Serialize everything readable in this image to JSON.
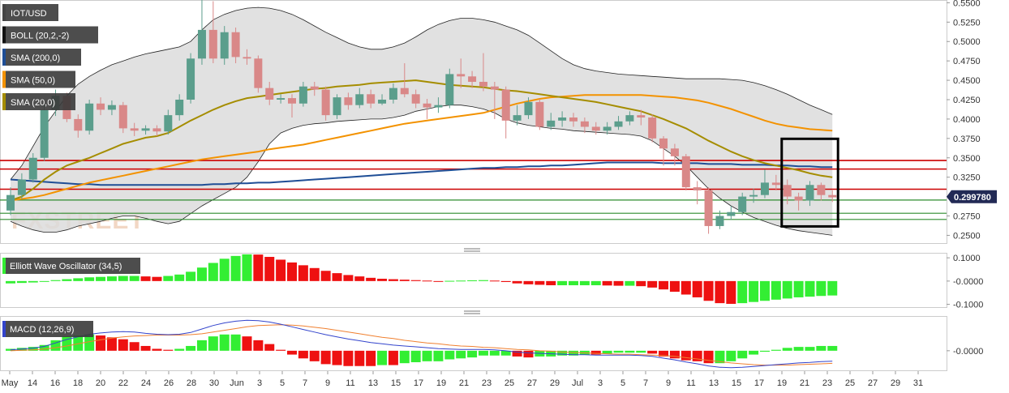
{
  "chart_data": {
    "type": "candlestick",
    "symbol": "IOT/USD",
    "watermark": "FXSTREET",
    "last_price_label": "0.299780",
    "last_price": 0.29978,
    "legend": [
      {
        "label": "IOT/USD",
        "color": "#444444"
      },
      {
        "label": "BOLL (20,2,-2)",
        "color": "#111111"
      },
      {
        "label": "SMA (200,0)",
        "color": "#1f4e96"
      },
      {
        "label": "SMA (50,0)",
        "color": "#f39200"
      },
      {
        "label": "SMA (20,0)",
        "color": "#a58d00"
      }
    ],
    "colors": {
      "up": "#5b9e8c",
      "down": "#d98888",
      "sma200": "#1f4e96",
      "sma50": "#f39200",
      "sma20": "#a58d00",
      "band": "#dcdcdc",
      "support": "#2e8b2e",
      "resistance": "#cc0000",
      "osc_up": "#33ee33",
      "osc_down": "#ee1111",
      "macd_line": "#3344cc",
      "signal_line": "#f08030"
    },
    "price_axis": {
      "ylim": [
        0.24,
        0.5525
      ],
      "ticks": [
        "0.5500",
        "0.5250",
        "0.5000",
        "0.4750",
        "0.4500",
        "0.4250",
        "0.4000",
        "0.3750",
        "0.3500",
        "0.3250",
        "0.3000",
        "0.2750",
        "0.2500"
      ]
    },
    "x_axis": {
      "ticks": [
        "May",
        "14",
        "16",
        "18",
        "20",
        "22",
        "24",
        "26",
        "28",
        "30",
        "Jun",
        "3",
        "5",
        "7",
        "9",
        "11",
        "13",
        "15",
        "17",
        "19",
        "21",
        "23",
        "25",
        "27",
        "29",
        "Jul",
        "3",
        "5",
        "7",
        "9",
        "11",
        "13",
        "15",
        "17",
        "19",
        "21",
        "23",
        "25",
        "27",
        "29",
        "31"
      ]
    },
    "candles": [
      [
        0.282,
        0.302,
        0.312,
        0.276
      ],
      [
        0.302,
        0.322,
        0.33,
        0.297
      ],
      [
        0.322,
        0.35,
        0.356,
        0.318
      ],
      [
        0.35,
        0.412,
        0.418,
        0.346
      ],
      [
        0.412,
        0.43,
        0.438,
        0.404
      ],
      [
        0.43,
        0.4,
        0.434,
        0.396
      ],
      [
        0.4,
        0.385,
        0.406,
        0.376
      ],
      [
        0.385,
        0.42,
        0.425,
        0.38
      ],
      [
        0.42,
        0.412,
        0.428,
        0.405
      ],
      [
        0.412,
        0.418,
        0.424,
        0.405
      ],
      [
        0.418,
        0.388,
        0.422,
        0.382
      ],
      [
        0.388,
        0.385,
        0.395,
        0.378
      ],
      [
        0.385,
        0.388,
        0.392,
        0.38
      ],
      [
        0.388,
        0.384,
        0.392,
        0.378
      ],
      [
        0.384,
        0.405,
        0.412,
        0.38
      ],
      [
        0.405,
        0.425,
        0.432,
        0.398
      ],
      [
        0.425,
        0.478,
        0.485,
        0.42
      ],
      [
        0.478,
        0.515,
        0.555,
        0.47
      ],
      [
        0.515,
        0.478,
        0.552,
        0.472
      ],
      [
        0.478,
        0.512,
        0.52,
        0.47
      ],
      [
        0.512,
        0.48,
        0.518,
        0.472
      ],
      [
        0.48,
        0.478,
        0.49,
        0.47
      ],
      [
        0.478,
        0.44,
        0.482,
        0.434
      ],
      [
        0.44,
        0.425,
        0.448,
        0.418
      ],
      [
        0.425,
        0.427,
        0.432,
        0.42
      ],
      [
        0.427,
        0.42,
        0.432,
        0.402
      ],
      [
        0.42,
        0.442,
        0.448,
        0.416
      ],
      [
        0.442,
        0.438,
        0.448,
        0.43
      ],
      [
        0.438,
        0.405,
        0.442,
        0.398
      ],
      [
        0.405,
        0.428,
        0.432,
        0.4
      ],
      [
        0.428,
        0.418,
        0.434,
        0.412
      ],
      [
        0.418,
        0.432,
        0.44,
        0.414
      ],
      [
        0.432,
        0.42,
        0.438,
        0.414
      ],
      [
        0.42,
        0.425,
        0.432,
        0.418
      ],
      [
        0.425,
        0.44,
        0.446,
        0.42
      ],
      [
        0.44,
        0.432,
        0.472,
        0.428
      ],
      [
        0.432,
        0.42,
        0.438,
        0.414
      ],
      [
        0.42,
        0.415,
        0.426,
        0.4
      ],
      [
        0.415,
        0.418,
        0.428,
        0.408
      ],
      [
        0.418,
        0.458,
        0.465,
        0.414
      ],
      [
        0.458,
        0.455,
        0.478,
        0.44
      ],
      [
        0.455,
        0.448,
        0.462,
        0.44
      ],
      [
        0.448,
        0.442,
        0.485,
        0.436
      ],
      [
        0.442,
        0.438,
        0.448,
        0.4
      ],
      [
        0.438,
        0.398,
        0.442,
        0.375
      ],
      [
        0.398,
        0.405,
        0.418,
        0.392
      ],
      [
        0.405,
        0.422,
        0.428,
        0.4
      ],
      [
        0.422,
        0.39,
        0.426,
        0.386
      ],
      [
        0.39,
        0.398,
        0.408,
        0.386
      ],
      [
        0.398,
        0.402,
        0.41,
        0.39
      ],
      [
        0.402,
        0.397,
        0.408,
        0.39
      ],
      [
        0.397,
        0.39,
        0.402,
        0.382
      ],
      [
        0.39,
        0.385,
        0.396,
        0.38
      ],
      [
        0.385,
        0.39,
        0.396,
        0.38
      ],
      [
        0.39,
        0.397,
        0.404,
        0.386
      ],
      [
        0.397,
        0.405,
        0.41,
        0.392
      ],
      [
        0.405,
        0.402,
        0.412,
        0.392
      ],
      [
        0.402,
        0.375,
        0.406,
        0.37
      ],
      [
        0.375,
        0.362,
        0.378,
        0.34
      ],
      [
        0.362,
        0.352,
        0.368,
        0.34
      ],
      [
        0.352,
        0.312,
        0.355,
        0.308
      ],
      [
        0.312,
        0.308,
        0.32,
        0.29
      ],
      [
        0.308,
        0.262,
        0.312,
        0.252
      ],
      [
        0.262,
        0.275,
        0.282,
        0.258
      ],
      [
        0.275,
        0.28,
        0.288,
        0.27
      ],
      [
        0.28,
        0.3,
        0.305,
        0.276
      ],
      [
        0.3,
        0.302,
        0.31,
        0.292
      ],
      [
        0.302,
        0.318,
        0.335,
        0.298
      ],
      [
        0.318,
        0.315,
        0.328,
        0.308
      ],
      [
        0.315,
        0.3,
        0.322,
        0.29
      ],
      [
        0.3,
        0.295,
        0.305,
        0.282
      ],
      [
        0.295,
        0.315,
        0.32,
        0.288
      ],
      [
        0.315,
        0.302,
        0.318,
        0.295
      ],
      [
        0.302,
        0.299,
        0.308,
        0.293
      ]
    ],
    "sma20": [
      0.295,
      0.3,
      0.31,
      0.322,
      0.332,
      0.34,
      0.345,
      0.35,
      0.356,
      0.362,
      0.368,
      0.372,
      0.376,
      0.378,
      0.382,
      0.39,
      0.398,
      0.405,
      0.412,
      0.418,
      0.423,
      0.427,
      0.429,
      0.431,
      0.433,
      0.435,
      0.437,
      0.439,
      0.44,
      0.442,
      0.443,
      0.444,
      0.446,
      0.447,
      0.448,
      0.449,
      0.45,
      0.448,
      0.446,
      0.444,
      0.443,
      0.442,
      0.441,
      0.439,
      0.437,
      0.436,
      0.434,
      0.432,
      0.43,
      0.428,
      0.426,
      0.424,
      0.422,
      0.419,
      0.416,
      0.413,
      0.41,
      0.405,
      0.4,
      0.394,
      0.388,
      0.38,
      0.372,
      0.365,
      0.358,
      0.352,
      0.347,
      0.343,
      0.34,
      0.337,
      0.334,
      0.33,
      0.327,
      0.325
    ],
    "sma50": [
      0.295,
      0.297,
      0.299,
      0.302,
      0.306,
      0.31,
      0.314,
      0.318,
      0.321,
      0.324,
      0.327,
      0.33,
      0.333,
      0.336,
      0.339,
      0.342,
      0.345,
      0.348,
      0.35,
      0.352,
      0.354,
      0.356,
      0.358,
      0.361,
      0.363,
      0.365,
      0.367,
      0.37,
      0.373,
      0.376,
      0.379,
      0.382,
      0.385,
      0.388,
      0.391,
      0.394,
      0.396,
      0.398,
      0.4,
      0.402,
      0.404,
      0.406,
      0.408,
      0.412,
      0.416,
      0.42,
      0.423,
      0.426,
      0.428,
      0.429,
      0.43,
      0.431,
      0.431,
      0.431,
      0.431,
      0.431,
      0.431,
      0.43,
      0.429,
      0.428,
      0.426,
      0.424,
      0.421,
      0.417,
      0.413,
      0.408,
      0.403,
      0.398,
      0.394,
      0.391,
      0.389,
      0.387,
      0.386,
      0.385
    ],
    "sma200": [
      0.322,
      0.321,
      0.32,
      0.319,
      0.318,
      0.317,
      0.316,
      0.316,
      0.315,
      0.315,
      0.315,
      0.315,
      0.315,
      0.315,
      0.315,
      0.315,
      0.315,
      0.315,
      0.316,
      0.316,
      0.317,
      0.317,
      0.318,
      0.318,
      0.319,
      0.32,
      0.321,
      0.322,
      0.323,
      0.324,
      0.325,
      0.326,
      0.327,
      0.328,
      0.329,
      0.33,
      0.331,
      0.332,
      0.333,
      0.334,
      0.335,
      0.336,
      0.337,
      0.337,
      0.338,
      0.338,
      0.339,
      0.339,
      0.34,
      0.34,
      0.341,
      0.342,
      0.343,
      0.344,
      0.344,
      0.344,
      0.344,
      0.344,
      0.343,
      0.343,
      0.343,
      0.343,
      0.342,
      0.342,
      0.342,
      0.341,
      0.341,
      0.341,
      0.34,
      0.34,
      0.339,
      0.339,
      0.338,
      0.338
    ],
    "boll_upper": [
      0.322,
      0.34,
      0.365,
      0.39,
      0.41,
      0.43,
      0.445,
      0.455,
      0.463,
      0.47,
      0.475,
      0.48,
      0.484,
      0.487,
      0.49,
      0.493,
      0.5,
      0.515,
      0.528,
      0.535,
      0.54,
      0.543,
      0.544,
      0.543,
      0.54,
      0.535,
      0.528,
      0.52,
      0.512,
      0.505,
      0.498,
      0.493,
      0.49,
      0.49,
      0.493,
      0.498,
      0.506,
      0.515,
      0.522,
      0.527,
      0.53,
      0.53,
      0.528,
      0.525,
      0.52,
      0.515,
      0.508,
      0.498,
      0.488,
      0.478,
      0.47,
      0.465,
      0.462,
      0.46,
      0.458,
      0.457,
      0.456,
      0.455,
      0.454,
      0.453,
      0.452,
      0.452,
      0.452,
      0.452,
      0.451,
      0.45,
      0.447,
      0.443,
      0.438,
      0.432,
      0.425,
      0.418,
      0.412,
      0.406
    ],
    "boll_lower": [
      0.268,
      0.262,
      0.257,
      0.254,
      0.254,
      0.257,
      0.262,
      0.265,
      0.268,
      0.272,
      0.275,
      0.275,
      0.272,
      0.268,
      0.265,
      0.268,
      0.278,
      0.288,
      0.296,
      0.304,
      0.312,
      0.325,
      0.345,
      0.368,
      0.382,
      0.388,
      0.392,
      0.394,
      0.395,
      0.397,
      0.398,
      0.399,
      0.4,
      0.4,
      0.402,
      0.405,
      0.41,
      0.413,
      0.416,
      0.418,
      0.418,
      0.416,
      0.413,
      0.408,
      0.4,
      0.395,
      0.392,
      0.39,
      0.388,
      0.387,
      0.385,
      0.384,
      0.383,
      0.382,
      0.381,
      0.38,
      0.378,
      0.372,
      0.362,
      0.352,
      0.34,
      0.325,
      0.31,
      0.298,
      0.288,
      0.28,
      0.273,
      0.268,
      0.263,
      0.259,
      0.256,
      0.254,
      0.252,
      0.25
    ],
    "horizontal_lines": {
      "resistance": [
        0.3465,
        0.3355,
        0.3095
      ],
      "support": [
        0.2955,
        0.2785,
        0.2705
      ]
    },
    "highlight_box": {
      "x_start": 68.5,
      "x_end": 73.5,
      "price_top": 0.3745,
      "price_bottom": 0.2615
    },
    "ewo": {
      "label": "Elliott Wave Oscillator (34,5)",
      "ticks": [
        "0.1000",
        "-0.0000",
        "-0.1000"
      ],
      "ylim": [
        -0.112,
        0.118
      ],
      "values": [
        -0.01,
        -0.008,
        -0.006,
        -0.002,
        0.004,
        0.008,
        0.012,
        0.016,
        0.018,
        0.02,
        0.022,
        0.022,
        0.02,
        0.018,
        0.022,
        0.028,
        0.04,
        0.058,
        0.078,
        0.096,
        0.108,
        0.115,
        0.114,
        0.104,
        0.092,
        0.08,
        0.068,
        0.056,
        0.044,
        0.034,
        0.026,
        0.02,
        0.014,
        0.01,
        0.008,
        0.006,
        0.004,
        0.002,
        0.0,
        0.001,
        0.002,
        0.003,
        0.004,
        0.002,
        -0.004,
        -0.01,
        -0.014,
        -0.016,
        -0.018,
        -0.018,
        -0.018,
        -0.018,
        -0.018,
        -0.019,
        -0.02,
        -0.02,
        -0.022,
        -0.028,
        -0.036,
        -0.046,
        -0.058,
        -0.07,
        -0.085,
        -0.095,
        -0.098,
        -0.095,
        -0.09,
        -0.085,
        -0.08,
        -0.075,
        -0.07,
        -0.067,
        -0.064,
        -0.062
      ]
    },
    "macd": {
      "label": "MACD (12,26,9)",
      "ticks": [
        "-0.0000"
      ],
      "ylim": [
        -0.045,
        0.078
      ],
      "macd_line": [
        0.002,
        0.004,
        0.006,
        0.01,
        0.018,
        0.026,
        0.032,
        0.038,
        0.041,
        0.043,
        0.044,
        0.043,
        0.04,
        0.038,
        0.037,
        0.038,
        0.042,
        0.05,
        0.058,
        0.064,
        0.068,
        0.07,
        0.069,
        0.066,
        0.061,
        0.055,
        0.049,
        0.043,
        0.037,
        0.032,
        0.027,
        0.023,
        0.019,
        0.016,
        0.013,
        0.011,
        0.009,
        0.007,
        0.005,
        0.004,
        0.003,
        0.003,
        0.003,
        0.002,
        0.0,
        -0.003,
        -0.005,
        -0.006,
        -0.007,
        -0.008,
        -0.009,
        -0.009,
        -0.01,
        -0.01,
        -0.01,
        -0.01,
        -0.011,
        -0.013,
        -0.017,
        -0.021,
        -0.026,
        -0.03,
        -0.035,
        -0.038,
        -0.039,
        -0.038,
        -0.036,
        -0.034,
        -0.032,
        -0.03,
        -0.028,
        -0.027,
        -0.025,
        -0.024
      ],
      "signal_line": [
        0.0,
        0.001,
        0.002,
        0.004,
        0.007,
        0.011,
        0.016,
        0.021,
        0.025,
        0.029,
        0.032,
        0.034,
        0.035,
        0.036,
        0.036,
        0.036,
        0.037,
        0.039,
        0.043,
        0.047,
        0.051,
        0.055,
        0.058,
        0.059,
        0.06,
        0.059,
        0.057,
        0.054,
        0.051,
        0.047,
        0.043,
        0.039,
        0.035,
        0.031,
        0.028,
        0.024,
        0.021,
        0.018,
        0.016,
        0.013,
        0.011,
        0.01,
        0.008,
        0.007,
        0.005,
        0.003,
        0.002,
        0.0,
        -0.001,
        -0.003,
        -0.004,
        -0.005,
        -0.006,
        -0.007,
        -0.008,
        -0.008,
        -0.009,
        -0.01,
        -0.011,
        -0.013,
        -0.016,
        -0.019,
        -0.022,
        -0.025,
        -0.028,
        -0.03,
        -0.032,
        -0.033,
        -0.033,
        -0.033,
        -0.032,
        -0.031,
        -0.03,
        -0.029
      ]
    }
  }
}
